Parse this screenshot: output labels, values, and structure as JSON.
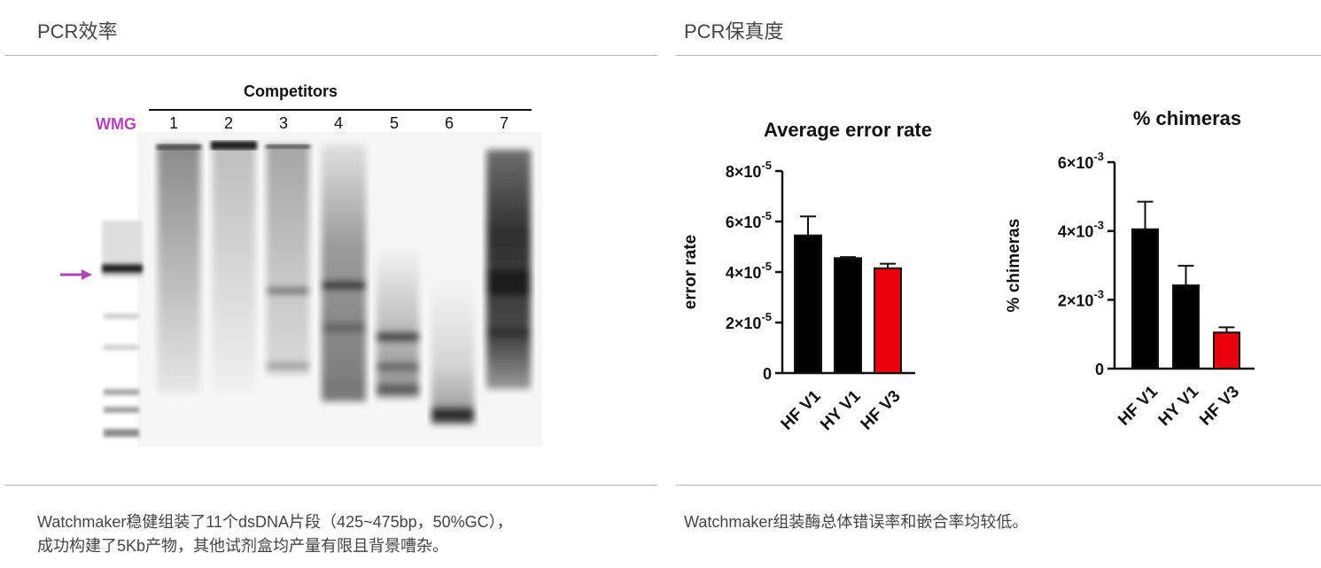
{
  "left_panel": {
    "title": "PCR效率",
    "caption_line1": "Watchmaker稳健组装了11个dsDNA片段（425~475bp，50%GC），",
    "caption_line2": "成功构建了5Kb产物，其他试剂盒均产量有限且背景嘈杂。",
    "gel": {
      "header": "Competitors",
      "marker_label": "WMG",
      "marker_color": "#b044b8",
      "lanes": [
        "1",
        "2",
        "3",
        "4",
        "5",
        "6",
        "7"
      ]
    }
  },
  "right_panel": {
    "title": "PCR保真度",
    "caption": "Watchmaker组装酶总体错误率和嵌合率均较低。"
  },
  "chart_data": [
    {
      "type": "bar",
      "title": "Average error rate",
      "ylabel": "error rate",
      "xlabel": "",
      "categories": [
        "HF V1",
        "HY V1",
        "HF V3"
      ],
      "values": [
        5.45e-05,
        4.55e-05,
        4.15e-05
      ],
      "errors": [
        7.5e-06,
        4e-07,
        1.8e-06
      ],
      "colors": [
        "#000000",
        "#000000",
        "#e8000b"
      ],
      "ylim": [
        0,
        8e-05
      ],
      "yticks": [
        0,
        2e-05,
        4e-05,
        6e-05,
        8e-05
      ],
      "ytick_labels": [
        {
          "base": "0",
          "exp": ""
        },
        {
          "base": "2×10",
          "exp": "-5"
        },
        {
          "base": "4×10",
          "exp": "-5"
        },
        {
          "base": "6×10",
          "exp": "-5"
        },
        {
          "base": "8×10",
          "exp": "-5"
        }
      ],
      "grid": false
    },
    {
      "type": "bar",
      "title": "% chimeras",
      "ylabel": "% chimeras",
      "xlabel": "",
      "categories": [
        "HF V1",
        "HY V1",
        "HF V3"
      ],
      "values": [
        0.00405,
        0.00242,
        0.00105
      ],
      "errors": [
        0.0008,
        0.00057,
        0.00015
      ],
      "colors": [
        "#000000",
        "#000000",
        "#e8000b"
      ],
      "ylim": [
        0,
        0.006
      ],
      "yticks": [
        0,
        0.002,
        0.004,
        0.006
      ],
      "ytick_labels": [
        {
          "base": "0",
          "exp": ""
        },
        {
          "base": "2×10",
          "exp": "-3"
        },
        {
          "base": "4×10",
          "exp": "-3"
        },
        {
          "base": "6×10",
          "exp": "-3"
        }
      ],
      "grid": false
    }
  ]
}
